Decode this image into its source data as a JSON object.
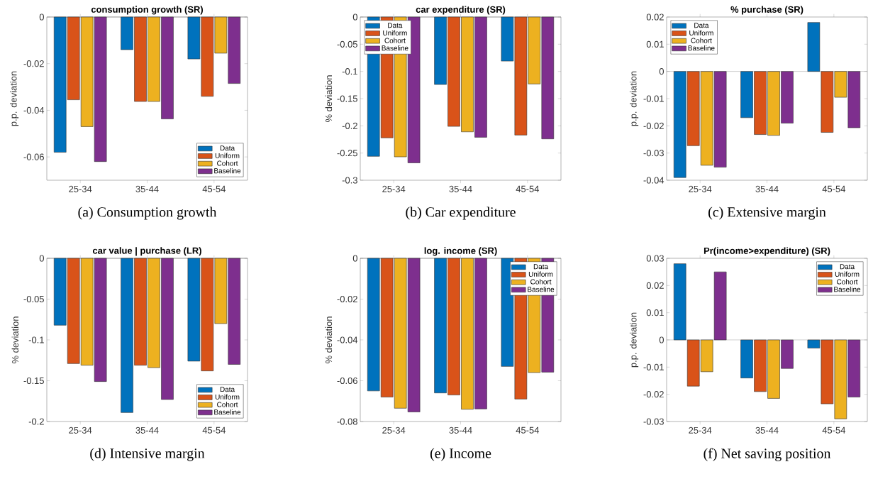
{
  "chart_data": [
    {
      "type": "bar",
      "title": "consumption growth (SR)",
      "ylabel": "p.p. deviation",
      "categories": [
        "25-34",
        "35-44",
        "45-54"
      ],
      "ylim": [
        -0.07,
        0
      ],
      "yticks": [
        -0.06,
        -0.04,
        -0.02,
        0
      ],
      "legend": "bottom right",
      "annotations": [
        "(a) Consumption growth"
      ],
      "series": [
        {
          "name": "Data",
          "color": "#0072bd",
          "values": [
            -0.058,
            -0.014,
            -0.018
          ]
        },
        {
          "name": "Uniform",
          "color": "#d95319",
          "values": [
            -0.0355,
            -0.0362,
            -0.034
          ]
        },
        {
          "name": "Cohort",
          "color": "#edb120",
          "values": [
            -0.047,
            -0.0362,
            -0.0155
          ]
        },
        {
          "name": "Baseline",
          "color": "#7e2f8e",
          "values": [
            -0.062,
            -0.0437,
            -0.0285
          ]
        }
      ]
    },
    {
      "type": "bar",
      "title": "car expenditure (SR)",
      "ylabel": "% deviation",
      "categories": [
        "25-34",
        "35-44",
        "45-54"
      ],
      "ylim": [
        -0.3,
        0
      ],
      "yticks": [
        -0.3,
        -0.25,
        -0.2,
        -0.15,
        -0.1,
        -0.05,
        0
      ],
      "legend": "top left",
      "annotations": [
        "(b) Car expenditure"
      ],
      "series": [
        {
          "name": "Data",
          "color": "#0072bd",
          "values": [
            -0.256,
            -0.124,
            -0.081
          ]
        },
        {
          "name": "Uniform",
          "color": "#d95319",
          "values": [
            -0.222,
            -0.201,
            -0.217
          ]
        },
        {
          "name": "Cohort",
          "color": "#edb120",
          "values": [
            -0.257,
            -0.211,
            -0.123
          ]
        },
        {
          "name": "Baseline",
          "color": "#7e2f8e",
          "values": [
            -0.268,
            -0.221,
            -0.224
          ]
        }
      ]
    },
    {
      "type": "bar",
      "title": "% purchase (SR)",
      "ylabel": "p.p. deviation",
      "categories": [
        "25-34",
        "35-44",
        "45-54"
      ],
      "ylim": [
        -0.04,
        0.02
      ],
      "yticks": [
        -0.04,
        -0.03,
        -0.02,
        -0.01,
        0,
        0.01,
        0.02
      ],
      "legend": "top left",
      "annotations": [
        "(c) Extensive margin"
      ],
      "series": [
        {
          "name": "Data",
          "color": "#0072bd",
          "values": [
            -0.039,
            -0.017,
            0.018
          ]
        },
        {
          "name": "Uniform",
          "color": "#d95319",
          "values": [
            -0.0273,
            -0.0232,
            -0.0224
          ]
        },
        {
          "name": "Cohort",
          "color": "#edb120",
          "values": [
            -0.0345,
            -0.0235,
            -0.0095
          ]
        },
        {
          "name": "Baseline",
          "color": "#7e2f8e",
          "values": [
            -0.0352,
            -0.019,
            -0.0207
          ]
        }
      ]
    },
    {
      "type": "bar",
      "title": "car value | purchase (LR)",
      "ylabel": "% deviation",
      "categories": [
        "25-34",
        "35-44",
        "45-54"
      ],
      "ylim": [
        -0.2,
        0
      ],
      "yticks": [
        -0.2,
        -0.15,
        -0.1,
        -0.05,
        0
      ],
      "legend": "bottom right",
      "annotations": [
        "(d) Intensive margin"
      ],
      "series": [
        {
          "name": "Data",
          "color": "#0072bd",
          "values": [
            -0.082,
            -0.189,
            -0.126
          ]
        },
        {
          "name": "Uniform",
          "color": "#d95319",
          "values": [
            -0.129,
            -0.131,
            -0.138
          ]
        },
        {
          "name": "Cohort",
          "color": "#edb120",
          "values": [
            -0.131,
            -0.134,
            -0.08
          ]
        },
        {
          "name": "Baseline",
          "color": "#7e2f8e",
          "values": [
            -0.151,
            -0.173,
            -0.13
          ]
        }
      ]
    },
    {
      "type": "bar",
      "title": "log. income (SR)",
      "ylabel": "% deviation",
      "categories": [
        "25-34",
        "35-44",
        "45-54"
      ],
      "ylim": [
        -0.08,
        0
      ],
      "yticks": [
        -0.08,
        -0.06,
        -0.04,
        -0.02,
        0
      ],
      "legend": "top right",
      "annotations": [
        "(e) Income"
      ],
      "series": [
        {
          "name": "Data",
          "color": "#0072bd",
          "values": [
            -0.065,
            -0.066,
            -0.053
          ]
        },
        {
          "name": "Uniform",
          "color": "#d95319",
          "values": [
            -0.068,
            -0.067,
            -0.069
          ]
        },
        {
          "name": "Cohort",
          "color": "#edb120",
          "values": [
            -0.0735,
            -0.074,
            -0.056
          ]
        },
        {
          "name": "Baseline",
          "color": "#7e2f8e",
          "values": [
            -0.0753,
            -0.0738,
            -0.0558
          ]
        }
      ]
    },
    {
      "type": "bar",
      "title": "Pr(income>expenditure) (SR)",
      "ylabel": "p.p. deviation",
      "categories": [
        "25-34",
        "35-44",
        "45-54"
      ],
      "ylim": [
        -0.03,
        0.03
      ],
      "yticks": [
        -0.03,
        -0.02,
        -0.01,
        0,
        0.01,
        0.02,
        0.03
      ],
      "legend": "top right",
      "annotations": [
        "(f) Net saving position"
      ],
      "series": [
        {
          "name": "Data",
          "color": "#0072bd",
          "values": [
            0.028,
            -0.014,
            -0.003
          ]
        },
        {
          "name": "Uniform",
          "color": "#d95319",
          "values": [
            -0.017,
            -0.019,
            -0.0235
          ]
        },
        {
          "name": "Cohort",
          "color": "#edb120",
          "values": [
            -0.0117,
            -0.0215,
            -0.029
          ]
        },
        {
          "name": "Baseline",
          "color": "#7e2f8e",
          "values": [
            0.025,
            -0.0105,
            -0.021
          ]
        }
      ]
    }
  ]
}
